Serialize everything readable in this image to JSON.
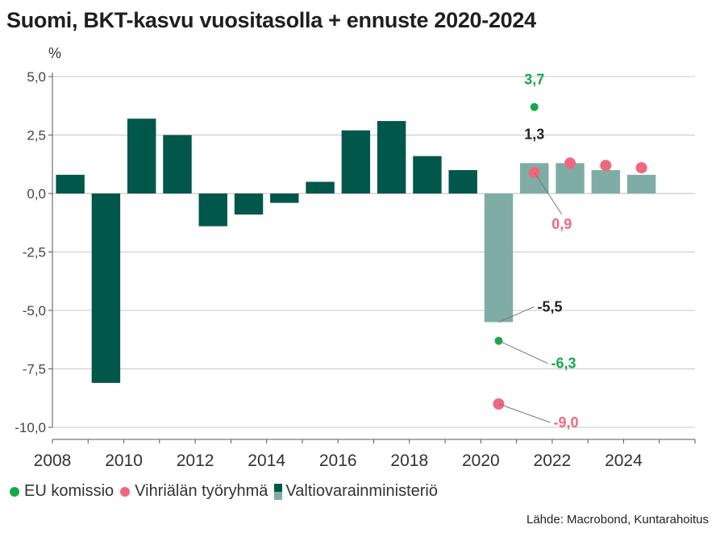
{
  "title": "Suomi, BKT-kasvu vuositasolla + ennuste 2020-2024",
  "source": "Lähde: Macrobond, Kuntarahoitus",
  "colors": {
    "actual": "#00574a",
    "forecast": "#7fada6",
    "eu": "#17a84a",
    "vihriala": "#f06880",
    "grid": "#c8c8c8",
    "axis": "#555555",
    "label_dark": "#222222"
  },
  "chart_data": {
    "type": "bar",
    "ylabel": "%",
    "ylim": [
      -10,
      5
    ],
    "yticks": [
      5,
      2.5,
      0,
      -2.5,
      -5,
      -7.5,
      -10
    ],
    "ytick_labels": [
      "5,0",
      "2,5",
      "0,0",
      "-2,5",
      "-5,0",
      "-7,5",
      "-10,0"
    ],
    "xlim": [
      2008,
      2026
    ],
    "xticks": [
      2008,
      2010,
      2012,
      2014,
      2016,
      2018,
      2020,
      2022,
      2024
    ],
    "grid": true,
    "legend_position": "bottom-left",
    "series": [
      {
        "name": "Valtiovarainministeriö",
        "kind": "bar",
        "points": [
          {
            "year": 2008,
            "value": 0.8,
            "forecast": false
          },
          {
            "year": 2009,
            "value": -8.1,
            "forecast": false
          },
          {
            "year": 2010,
            "value": 3.2,
            "forecast": false
          },
          {
            "year": 2011,
            "value": 2.5,
            "forecast": false
          },
          {
            "year": 2012,
            "value": -1.4,
            "forecast": false
          },
          {
            "year": 2013,
            "value": -0.9,
            "forecast": false
          },
          {
            "year": 2014,
            "value": -0.4,
            "forecast": false
          },
          {
            "year": 2015,
            "value": 0.5,
            "forecast": false
          },
          {
            "year": 2016,
            "value": 2.7,
            "forecast": false
          },
          {
            "year": 2017,
            "value": 3.1,
            "forecast": false
          },
          {
            "year": 2018,
            "value": 1.6,
            "forecast": false
          },
          {
            "year": 2019,
            "value": 1.0,
            "forecast": false
          },
          {
            "year": 2020,
            "value": -5.5,
            "forecast": true
          },
          {
            "year": 2021,
            "value": 1.3,
            "forecast": true
          },
          {
            "year": 2022,
            "value": 1.3,
            "forecast": true
          },
          {
            "year": 2023,
            "value": 1.0,
            "forecast": true
          },
          {
            "year": 2024,
            "value": 0.8,
            "forecast": true
          }
        ]
      },
      {
        "name": "EU komissio",
        "kind": "dot",
        "points": [
          {
            "year": 2020,
            "value": -6.3
          },
          {
            "year": 2021,
            "value": 3.7
          }
        ]
      },
      {
        "name": "Vihriälän työryhmä",
        "kind": "dot",
        "points": [
          {
            "year": 2020,
            "value": -9.0
          },
          {
            "year": 2021,
            "value": 0.9
          },
          {
            "year": 2022,
            "value": 1.3
          },
          {
            "year": 2023,
            "value": 1.2
          },
          {
            "year": 2024,
            "value": 1.1
          }
        ]
      }
    ],
    "annotations": [
      {
        "text": "3,7",
        "series": "EU komissio",
        "year": 2021,
        "value": 3.7
      },
      {
        "text": "1,3",
        "series": "Valtiovarainministeriö",
        "year": 2021,
        "value": 1.3
      },
      {
        "text": "0,9",
        "series": "Vihriälän työryhmä",
        "year": 2021,
        "value": 0.9
      },
      {
        "text": "-5,5",
        "series": "Valtiovarainministeriö",
        "year": 2020,
        "value": -5.5
      },
      {
        "text": "-6,3",
        "series": "EU komissio",
        "year": 2020,
        "value": -6.3
      },
      {
        "text": "-9,0",
        "series": "Vihriälän työryhmä",
        "year": 2020,
        "value": -9.0
      }
    ]
  }
}
